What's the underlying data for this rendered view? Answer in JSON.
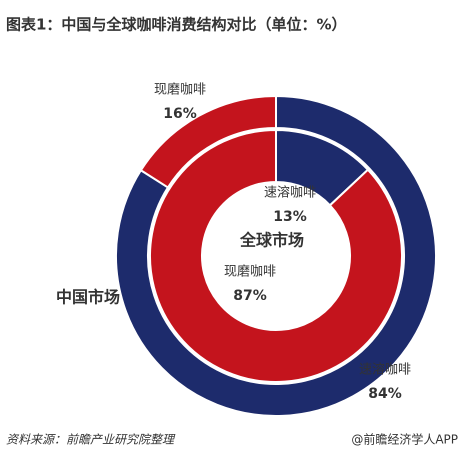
{
  "chart_data": {
    "type": "donut",
    "title": "图表1：中国与全球咖啡消费结构对比（单位：%）",
    "categories": [
      "速溶咖啡",
      "现磨咖啡"
    ],
    "colors": [
      "#1d2b6c",
      "#c4141d"
    ],
    "series": [
      {
        "name": "中国市场",
        "values": [
          84,
          16
        ],
        "value_labels": [
          "84%",
          "16%"
        ]
      },
      {
        "name": "全球市场",
        "values": [
          13,
          87
        ],
        "value_labels": [
          "13%",
          "87%"
        ]
      }
    ],
    "source": "资料来源：前瞻产业研究院整理",
    "credit": "@前瞻经济学人APP"
  }
}
